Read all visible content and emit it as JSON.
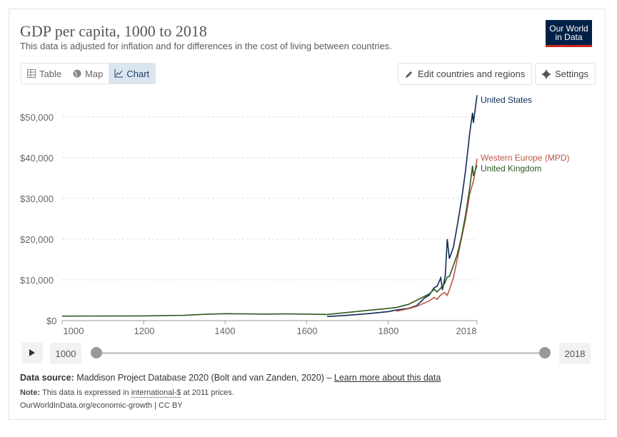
{
  "header": {
    "title": "GDP per capita, 1000 to 2018",
    "subtitle": "This data is adjusted for inflation and for differences in the cost of living between countries.",
    "logo_line1": "Our World",
    "logo_line2": "in Data"
  },
  "tabs": [
    {
      "label": "Table",
      "icon": "table-icon"
    },
    {
      "label": "Map",
      "icon": "globe-icon"
    },
    {
      "label": "Chart",
      "icon": "line-chart-icon",
      "active": true
    }
  ],
  "toolbar": {
    "edit_label": "Edit countries and regions",
    "settings_label": "Settings"
  },
  "timeline": {
    "start_year": "1000",
    "end_year": "2018"
  },
  "footer": {
    "source_label": "Data source:",
    "source_text": "Maddison Project Database 2020 (Bolt and van Zanden, 2020) –",
    "source_link": "Learn more about this data",
    "note_label": "Note:",
    "note_text_1": "This data is expressed in",
    "note_link": "international-$",
    "note_text_2": "at 2011 prices.",
    "url": "OurWorldInData.org/economic-growth | CC BY"
  },
  "colors": {
    "us": "#102a55",
    "western_europe": "#c05543",
    "uk": "#2e5a1e",
    "grid": "#dddddd",
    "accent": "#002147"
  },
  "chart_data": {
    "type": "line",
    "title": "GDP per capita, 1000 to 2018",
    "xlabel": "",
    "ylabel": "",
    "xlim": [
      1000,
      2018
    ],
    "ylim": [
      0,
      55000
    ],
    "x_ticks": [
      "1000",
      "1200",
      "1400",
      "1600",
      "1800",
      "2018"
    ],
    "y_ticks": [
      "$0",
      "$10,000",
      "$20,000",
      "$30,000",
      "$40,000",
      "$50,000"
    ],
    "y_tick_values": [
      0,
      10000,
      20000,
      30000,
      40000,
      50000
    ],
    "x_tick_values": [
      1000,
      1200,
      1400,
      1600,
      1800,
      2018
    ],
    "grid": true,
    "series": [
      {
        "name": "United States",
        "color_key": "us",
        "x": [
          1650,
          1700,
          1750,
          1800,
          1820,
          1850,
          1870,
          1890,
          1900,
          1913,
          1920,
          1929,
          1933,
          1940,
          1945,
          1950,
          1960,
          1970,
          1980,
          1990,
          2000,
          2007,
          2009,
          2018
        ],
        "y": [
          1000,
          1300,
          1700,
          2200,
          2600,
          3000,
          3700,
          5600,
          6200,
          8100,
          8400,
          10500,
          7500,
          11000,
          20000,
          15200,
          18000,
          23600,
          29600,
          36900,
          45900,
          51000,
          48500,
          55300
        ]
      },
      {
        "name": "Western Europe (MPD)",
        "color_key": "western_europe",
        "x": [
          1820,
          1850,
          1870,
          1900,
          1913,
          1920,
          1929,
          1938,
          1945,
          1950,
          1960,
          1970,
          1980,
          1990,
          2000,
          2010,
          2018
        ],
        "y": [
          2300,
          2900,
          3500,
          4800,
          5700,
          5200,
          6300,
          6900,
          6200,
          7500,
          10500,
          15300,
          20200,
          25000,
          31000,
          34500,
          39700
        ]
      },
      {
        "name": "United Kingdom",
        "color_key": "uk",
        "x": [
          1000,
          1100,
          1200,
          1252,
          1300,
          1348,
          1400,
          1450,
          1500,
          1550,
          1600,
          1650,
          1700,
          1750,
          1800,
          1820,
          1850,
          1870,
          1900,
          1913,
          1920,
          1929,
          1938,
          1945,
          1950,
          1960,
          1970,
          1980,
          1990,
          2000,
          2007,
          2009,
          2018
        ],
        "y": [
          1100,
          1120,
          1150,
          1250,
          1300,
          1550,
          1700,
          1650,
          1600,
          1650,
          1600,
          1500,
          2000,
          2500,
          3000,
          3200,
          4000,
          5000,
          6500,
          7700,
          7000,
          8000,
          9000,
          10700,
          10800,
          13500,
          16400,
          20600,
          26000,
          32500,
          38000,
          35500,
          38100
        ]
      }
    ]
  }
}
